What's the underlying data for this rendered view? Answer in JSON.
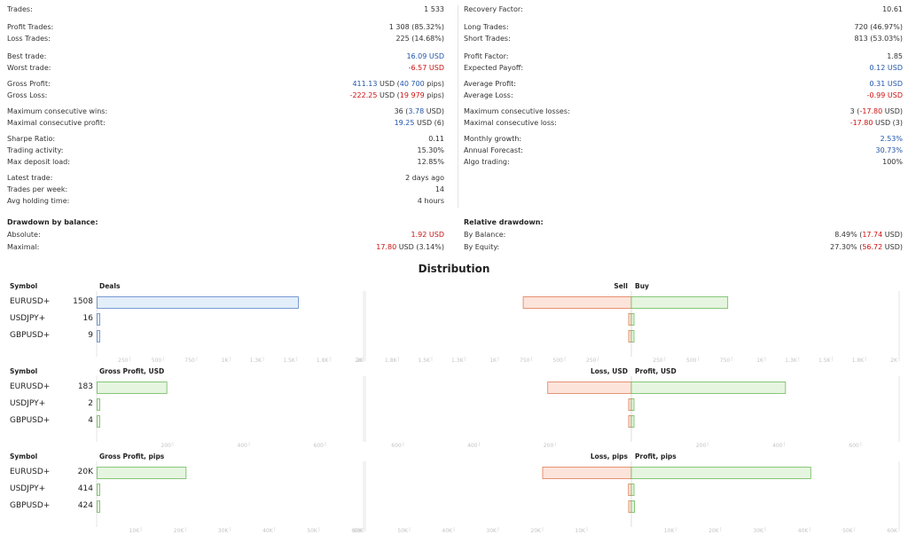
{
  "stats": {
    "left": [
      {
        "label": "Trades:",
        "value": "1 533"
      },
      {
        "label": "Profit Trades:",
        "value": "1 308 (85.32%)"
      },
      {
        "label": "Loss Trades:",
        "value": "225 (14.68%)"
      },
      {
        "label": "Best trade:",
        "value": "16.09 USD",
        "value_color": "blue"
      },
      {
        "label": "Worst trade:",
        "value": "-6.57 USD",
        "value_color": "red"
      },
      {
        "label": "Gross Profit:",
        "value_a": "411.13",
        "value_b": " USD (",
        "value_c": "40 700",
        "value_d": " pips)",
        "color": "blue"
      },
      {
        "label": "Gross Loss:",
        "value_a": "-222.25",
        "value_b": " USD (",
        "value_c": "19 979",
        "value_d": " pips)",
        "color": "red"
      },
      {
        "label": "Maximum consecutive wins:",
        "value_a": "36 (",
        "value_b": "3.78",
        "value_c": " USD)",
        "color": "blue"
      },
      {
        "label": "Maximal consecutive profit:",
        "value_a": "19.25",
        "value_b": " USD (6)",
        "color": "blue"
      },
      {
        "label": "Sharpe Ratio:",
        "value": "0.11"
      },
      {
        "label": "Trading activity:",
        "value": "15.30%"
      },
      {
        "label": "Max deposit load:",
        "value": "12.85%"
      },
      {
        "label": "Latest trade:",
        "value": "2 days ago"
      },
      {
        "label": "Trades per week:",
        "value": "14"
      },
      {
        "label": "Avg holding time:",
        "value": "4 hours"
      },
      {
        "label": "Drawdown by balance:",
        "value": ""
      },
      {
        "label": "Absolute:",
        "value": "1.92 USD",
        "value_color": "red"
      },
      {
        "label": "Maximal:",
        "value_a": "17.80",
        "value_b": " USD (3.14%)",
        "color": "red"
      }
    ],
    "right": [
      {
        "label": "Recovery Factor:",
        "value": "10.61"
      },
      {
        "label": "Long Trades:",
        "value": "720 (46.97%)"
      },
      {
        "label": "Short Trades:",
        "value": "813 (53.03%)"
      },
      {
        "label": "Profit Factor:",
        "value": "1.85"
      },
      {
        "label": "Expected Payoff:",
        "value": "0.12 USD",
        "value_color": "blue"
      },
      {
        "label": "Average Profit:",
        "value": "0.31 USD",
        "value_color": "blue"
      },
      {
        "label": "Average Loss:",
        "value": "-0.99 USD",
        "value_color": "red"
      },
      {
        "label": "Maximum consecutive losses:",
        "value_a": "3 (",
        "value_b": "-17.80",
        "value_c": " USD)",
        "color": "red"
      },
      {
        "label": "Maximal consecutive loss:",
        "value_a": "-17.80",
        "value_b": " USD (3)",
        "color": "red"
      },
      {
        "label": "Monthly growth:",
        "value": "2.53%",
        "value_color": "blue"
      },
      {
        "label": "Annual Forecast:",
        "value": "30.73%",
        "value_color": "blue"
      },
      {
        "label": "Algo trading:",
        "value": "100%"
      },
      {
        "label": "Relative drawdown:",
        "value": ""
      },
      {
        "label": "By Balance:",
        "value_a": "8.49% (",
        "value_b": "17.74",
        "value_c": " USD)",
        "color": "red"
      },
      {
        "label": "By Equity:",
        "value_a": "27.30% (",
        "value_b": "56.72",
        "value_c": " USD)",
        "color": "red"
      }
    ]
  },
  "distribution_title": "Distribution",
  "colors": {
    "blue_fill": "#e3eefb",
    "blue_stroke": "#5b86c9",
    "green_fill": "#e6f5e0",
    "green_stroke": "#6cbb5a",
    "red_fill": "#fde4db",
    "red_stroke": "#e07a55",
    "grid": "#e6e6e6",
    "tick": "#c4c4c4"
  },
  "chart_data": [
    {
      "type": "bar",
      "symbol_header": "Symbol",
      "left_title": "Deals",
      "right_left_title": "Sell",
      "right_right_title": "Buy",
      "categories": [
        "EURUSD+",
        "USDJPY+",
        "GBPUSD+"
      ],
      "left_labels": [
        "1508",
        "16",
        "9"
      ],
      "left_values": [
        1508,
        16,
        9
      ],
      "left_color": "blue",
      "left_max": 2000,
      "left_ticks": [
        "250",
        "500",
        "750",
        "1K",
        "1.3K",
        "1.5K",
        "1.8K",
        "2K"
      ],
      "right_left_values": [
        813,
        14,
        4
      ],
      "right_right_values": [
        720,
        2,
        5
      ],
      "right_max": 2000,
      "right_ticks_neg": [
        "2K",
        "1.8K",
        "1.5K",
        "1.3K",
        "1K",
        "750",
        "500",
        "250"
      ],
      "right_ticks_pos": [
        "250",
        "500",
        "750",
        "1K",
        "1.3K",
        "1.5K",
        "1.8K",
        "2K"
      ]
    },
    {
      "type": "bar",
      "symbol_header": "Symbol",
      "left_title": "Gross Profit, USD",
      "right_left_title": "Loss, USD",
      "right_right_title": "Profit, USD",
      "categories": [
        "EURUSD+",
        "USDJPY+",
        "GBPUSD+"
      ],
      "left_labels": [
        "183",
        "2",
        "4"
      ],
      "left_values": [
        183,
        2,
        4
      ],
      "left_color": "green",
      "left_max": 700,
      "left_ticks": [
        "200",
        "400",
        "600"
      ],
      "left_tick_values": [
        200,
        400,
        600
      ],
      "right_left_values": [
        220,
        2,
        1
      ],
      "right_right_values": [
        403,
        4,
        5
      ],
      "right_max": 700,
      "right_ticks_neg": [
        "600",
        "400",
        "200"
      ],
      "right_ticks_neg_values": [
        600,
        400,
        200
      ],
      "right_ticks_pos": [
        "200",
        "400",
        "600"
      ],
      "right_ticks_pos_values": [
        200,
        400,
        600
      ]
    },
    {
      "type": "bar",
      "symbol_header": "Symbol",
      "left_title": "Gross Profit, pips",
      "right_left_title": "Loss, pips",
      "right_right_title": "Profit, pips",
      "categories": [
        "EURUSD+",
        "USDJPY+",
        "GBPUSD+"
      ],
      "left_labels": [
        "20K",
        "414",
        "424"
      ],
      "left_values": [
        20000,
        414,
        424
      ],
      "left_color": "green",
      "left_max": 60000,
      "left_ticks": [
        "10K",
        "20K",
        "30K",
        "40K",
        "50K",
        "60K"
      ],
      "right_left_values": [
        20000,
        650,
        200
      ],
      "right_right_values": [
        40200,
        600,
        700
      ],
      "right_max": 60000,
      "right_ticks_neg": [
        "60K",
        "50K",
        "40K",
        "30K",
        "20K",
        "10K"
      ],
      "right_ticks_pos": [
        "10K",
        "20K",
        "30K",
        "40K",
        "50K",
        "60K"
      ]
    }
  ]
}
